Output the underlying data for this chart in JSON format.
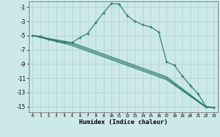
{
  "xlabel": "Humidex (Indice chaleur)",
  "background_color": "#cce8e8",
  "line_color": "#2a7b6e",
  "grid_color": "#aacece",
  "xlim": [
    -0.5,
    23.5
  ],
  "ylim": [
    -15.8,
    -0.2
  ],
  "yticks": [
    -1,
    -3,
    -5,
    -7,
    -9,
    -11,
    -13,
    -15
  ],
  "xticks": [
    0,
    1,
    2,
    3,
    4,
    5,
    6,
    7,
    8,
    9,
    10,
    11,
    12,
    13,
    14,
    15,
    16,
    17,
    18,
    19,
    20,
    21,
    22,
    23
  ],
  "main_line_x": [
    0,
    1,
    2,
    3,
    4,
    5,
    6,
    7,
    8,
    9,
    10,
    11,
    12,
    13,
    14,
    15,
    16,
    17,
    18,
    19,
    20,
    21,
    22,
    23
  ],
  "main_line_y": [
    -5.0,
    -5.1,
    -5.5,
    -5.8,
    -5.9,
    -6.0,
    -5.3,
    -4.7,
    -3.2,
    -1.8,
    -0.5,
    -0.6,
    -2.2,
    -3.0,
    -3.5,
    -3.8,
    -4.5,
    -8.7,
    -9.2,
    -10.7,
    -12.0,
    -13.2,
    -15.0,
    -15.1
  ],
  "diag_lines": [
    {
      "x": [
        0,
        5,
        17,
        22,
        23
      ],
      "y": [
        -5.0,
        -6.0,
        -10.8,
        -15.0,
        -15.1
      ]
    },
    {
      "x": [
        0,
        5,
        17,
        22,
        23
      ],
      "y": [
        -5.0,
        -6.2,
        -11.0,
        -15.05,
        -15.1
      ]
    },
    {
      "x": [
        0,
        5,
        17,
        22,
        23
      ],
      "y": [
        -5.0,
        -6.4,
        -11.2,
        -15.1,
        -15.15
      ]
    }
  ]
}
